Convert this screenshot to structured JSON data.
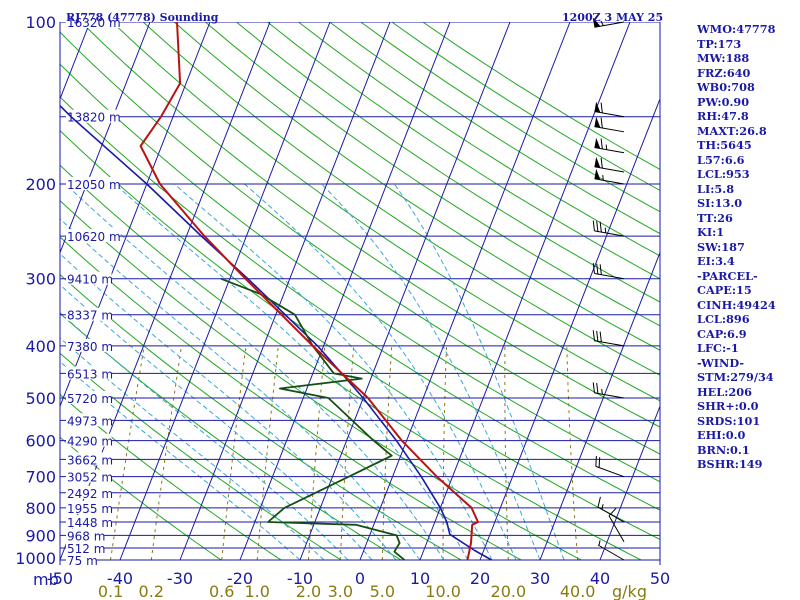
{
  "chart_data": {
    "type": "skew-t",
    "title_left": "RJ778 (47778) Sounding",
    "title_right": "1200Z  3 MAY 25",
    "pressure_axis_label": "mb",
    "pressure_levels": [
      100,
      200,
      300,
      400,
      500,
      600,
      700,
      800,
      900,
      1000
    ],
    "pressure_ticks": [
      "100",
      "200",
      "300",
      "400",
      "500",
      "600",
      "700",
      "800",
      "900",
      "1000"
    ],
    "height_labels": [
      {
        "p": 100,
        "text": "16320 m"
      },
      {
        "p": 150,
        "text": "13820 m"
      },
      {
        "p": 200,
        "text": "12050 m"
      },
      {
        "p": 250,
        "text": "10620 m"
      },
      {
        "p": 300,
        "text": "9410 m"
      },
      {
        "p": 350,
        "text": "8337 m"
      },
      {
        "p": 400,
        "text": "7380 m"
      },
      {
        "p": 450,
        "text": "6513 m"
      },
      {
        "p": 500,
        "text": "5720 m"
      },
      {
        "p": 550,
        "text": "4973 m"
      },
      {
        "p": 600,
        "text": "4290 m"
      },
      {
        "p": 650,
        "text": "3662 m"
      },
      {
        "p": 700,
        "text": "3052 m"
      },
      {
        "p": 750,
        "text": "2492 m"
      },
      {
        "p": 800,
        "text": "1955 m"
      },
      {
        "p": 850,
        "text": "1448 m"
      },
      {
        "p": 900,
        "text": "968 m"
      },
      {
        "p": 950,
        "text": "512 m"
      },
      {
        "p": 1000,
        "text": "75 m"
      }
    ],
    "temperature_ticks": [
      "-50",
      "-40",
      "-30",
      "-20",
      "-10",
      "0",
      "10",
      "20",
      "30",
      "40",
      "50"
    ],
    "temperature_values": [
      -50,
      -40,
      -30,
      -20,
      -10,
      0,
      10,
      20,
      30,
      40,
      50
    ],
    "mixing_ratio_ticks": [
      "0.1",
      "0.2",
      "0.6",
      "1.0",
      "2.0",
      "3.0",
      "5.0",
      "10.0",
      "20.0",
      "40.0"
    ],
    "mixing_ratio_values": [
      0.1,
      0.2,
      0.6,
      1.0,
      2.0,
      3.0,
      5.0,
      10.0,
      20.0,
      40.0
    ],
    "mixing_ratio_unit": "g/kg",
    "temperature_profile": [
      {
        "p": 1005,
        "t": 18.0
      },
      {
        "p": 985,
        "t": 17.8
      },
      {
        "p": 930,
        "t": 17.4
      },
      {
        "p": 860,
        "t": 16.4
      },
      {
        "p": 850,
        "t": 17.2
      },
      {
        "p": 800,
        "t": 15.2
      },
      {
        "p": 700,
        "t": 7.4
      },
      {
        "p": 600,
        "t": -0.8
      },
      {
        "p": 500,
        "t": -9.2
      },
      {
        "p": 400,
        "t": -21.8
      },
      {
        "p": 300,
        "t": -37.4
      },
      {
        "p": 250,
        "t": -47.0
      },
      {
        "p": 200,
        "t": -57.8
      },
      {
        "p": 170,
        "t": -63.5
      },
      {
        "p": 150,
        "t": -62.0
      },
      {
        "p": 130,
        "t": -61.0
      },
      {
        "p": 100,
        "t": -65.5
      }
    ],
    "dewpoint_profile": [
      {
        "p": 1005,
        "t": 7.5
      },
      {
        "p": 990,
        "t": 6.8
      },
      {
        "p": 965,
        "t": 5.2
      },
      {
        "p": 930,
        "t": 5.5
      },
      {
        "p": 900,
        "t": 4.5
      },
      {
        "p": 860,
        "t": -3.0
      },
      {
        "p": 850,
        "t": -17.8
      },
      {
        "p": 800,
        "t": -16.0
      },
      {
        "p": 700,
        "t": -7.3
      },
      {
        "p": 640,
        "t": -1.5
      },
      {
        "p": 600,
        "t": -5.5
      },
      {
        "p": 500,
        "t": -15.8
      },
      {
        "p": 480,
        "t": -24.5
      },
      {
        "p": 460,
        "t": -11.5
      },
      {
        "p": 450,
        "t": -16.5
      },
      {
        "p": 400,
        "t": -21.8
      },
      {
        "p": 350,
        "t": -26.8
      },
      {
        "p": 320,
        "t": -34.0
      },
      {
        "p": 300,
        "t": -41.5
      }
    ],
    "parcel_path": [
      {
        "p": 1005,
        "t": 22.0
      },
      {
        "p": 960,
        "t": 18.5
      },
      {
        "p": 896,
        "t": 13.3
      },
      {
        "p": 850,
        "t": 12.0
      },
      {
        "p": 800,
        "t": 10.0
      },
      {
        "p": 700,
        "t": 4.8
      },
      {
        "p": 600,
        "t": -1.7
      },
      {
        "p": 500,
        "t": -10.0
      },
      {
        "p": 400,
        "t": -21.0
      },
      {
        "p": 300,
        "t": -37.0
      },
      {
        "p": 250,
        "t": -47.5
      },
      {
        "p": 200,
        "t": -60.0
      },
      {
        "p": 150,
        "t": -77.0
      },
      {
        "p": 100,
        "t": -99.0
      }
    ],
    "wind_barbs": [
      {
        "p": 100,
        "dir": 260,
        "kt": 55
      },
      {
        "p": 150,
        "dir": 280,
        "kt": 60
      },
      {
        "p": 160,
        "dir": 280,
        "kt": 60
      },
      {
        "p": 175,
        "dir": 280,
        "kt": 65
      },
      {
        "p": 190,
        "dir": 280,
        "kt": 60
      },
      {
        "p": 200,
        "dir": 280,
        "kt": 55
      },
      {
        "p": 250,
        "dir": 280,
        "kt": 35
      },
      {
        "p": 300,
        "dir": 280,
        "kt": 30
      },
      {
        "p": 400,
        "dir": 280,
        "kt": 30
      },
      {
        "p": 500,
        "dir": 280,
        "kt": 25
      },
      {
        "p": 700,
        "dir": 290,
        "kt": 20
      },
      {
        "p": 850,
        "dir": 300,
        "kt": 15
      },
      {
        "p": 925,
        "dir": 330,
        "kt": 10
      },
      {
        "p": 1000,
        "dir": 300,
        "kt": 5
      }
    ],
    "colors": {
      "isobar": "#1a1aa6",
      "isotherm": "#1a1aa6",
      "dry_adiabat": "#22a822",
      "moist_adiabat": "#3aa8d8",
      "mixing_ratio": "#8a7a10",
      "temperature": "#b81414",
      "dewpoint": "#145014",
      "parcel": "#1a1aa6",
      "wind": "#000000"
    }
  },
  "indices": [
    "WMO:47778",
    "TP:173",
    "MW:188",
    "FRZ:640",
    "WB0:708",
    "PW:0.90",
    "RH:47.8",
    "MAXT:26.8",
    "TH:5645",
    "L57:6.6",
    "LCL:953",
    "LI:5.8",
    "SI:13.0",
    "TT:26",
    "KI:1",
    "SW:187",
    "EI:3.4",
    "-PARCEL-",
    "CAPE:15",
    "CINH:49424",
    "LCL:896",
    "CAP:6.9",
    "LFC:-1",
    "-WIND-",
    "STM:279/34",
    "HEL:206",
    "SHR+:0.0",
    "SRDS:101",
    "EHI:0.0",
    "BRN:0.1",
    "BSHR:149"
  ]
}
